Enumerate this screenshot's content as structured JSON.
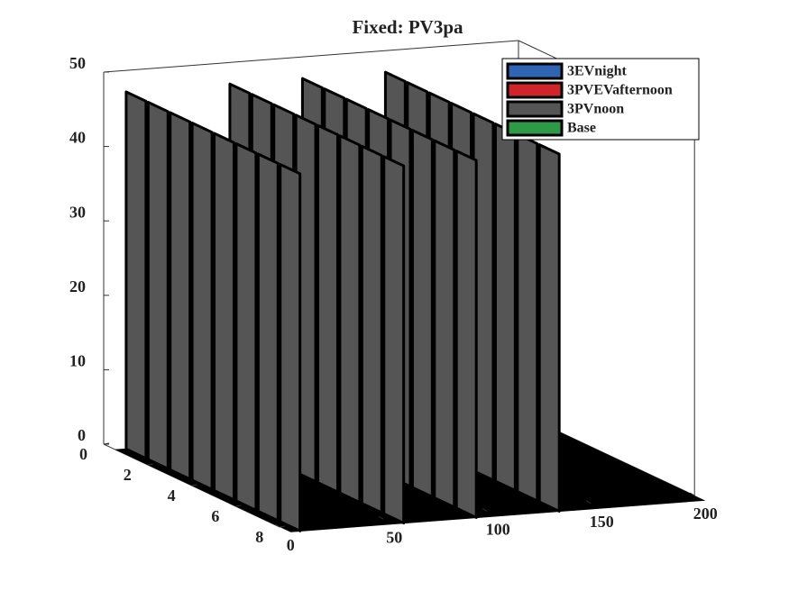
{
  "chart_data": {
    "type": "waterfall3d",
    "title": "Fixed: PV3pa",
    "rows": [
      1,
      2,
      3,
      4,
      5,
      6,
      7,
      8
    ],
    "series": [
      {
        "name": "3EVnight",
        "color": "#2f63b4"
      },
      {
        "name": "3PVEVafternoon",
        "color": "#d0242b"
      },
      {
        "name": "3PVnoon",
        "color": "#555555",
        "x": [
          5,
          55,
          90,
          130
        ],
        "values": [
          48,
          48,
          48,
          48
        ]
      },
      {
        "name": "Base",
        "color": "#2e9a48"
      }
    ],
    "rowlim": [
      0,
      8
    ],
    "rowticks": [
      0,
      2,
      4,
      6,
      8
    ],
    "xlim": [
      0,
      200
    ],
    "xticks": [
      0,
      50,
      100,
      150,
      200
    ],
    "zlim": [
      0,
      50
    ],
    "zticks": [
      0,
      10,
      20,
      30,
      40,
      50
    ],
    "legend": "top-right"
  }
}
